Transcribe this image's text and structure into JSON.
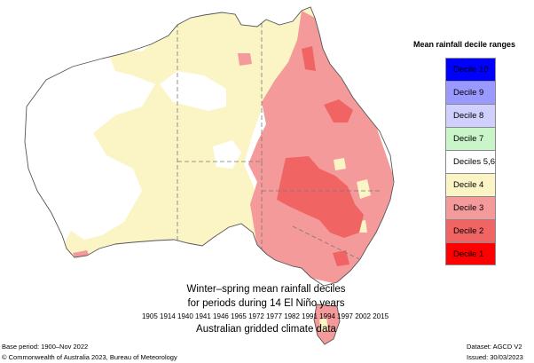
{
  "legend": {
    "title": "Mean rainfall decile ranges",
    "items": [
      {
        "label": "Decile 10",
        "color": "#0000ff"
      },
      {
        "label": "Decile 9",
        "color": "#9999ff"
      },
      {
        "label": "Decile 8",
        "color": "#d0d0ff"
      },
      {
        "label": "Decile 7",
        "color": "#c9f5c9"
      },
      {
        "label": "Deciles 5,6",
        "color": "#ffffff"
      },
      {
        "label": "Decile 4",
        "color": "#fbf5c6"
      },
      {
        "label": "Decile 3",
        "color": "#f59a9a"
      },
      {
        "label": "Decile 2",
        "color": "#f06464"
      },
      {
        "label": "Decile 1",
        "color": "#ff0000"
      }
    ]
  },
  "caption": {
    "title": "Winter–spring mean rainfall deciles",
    "subtitle": "for periods during 14 El Niño years",
    "years": "1905 1914 1940 1941 1946 1965 1972 1977 1982 1991 1994 1997 2002 2015",
    "grid": "Australian gridded climate data"
  },
  "footer": {
    "base_period": "Base period: 1900–Nov 2022",
    "copyright": "© Commonwealth of Australia 2023, Bureau of Meteorology",
    "dataset": "Dataset: AGCD V2",
    "issued": "Issued: 30/03/2023"
  },
  "colors": {
    "outline": "#555555",
    "state_border": "#777777"
  }
}
